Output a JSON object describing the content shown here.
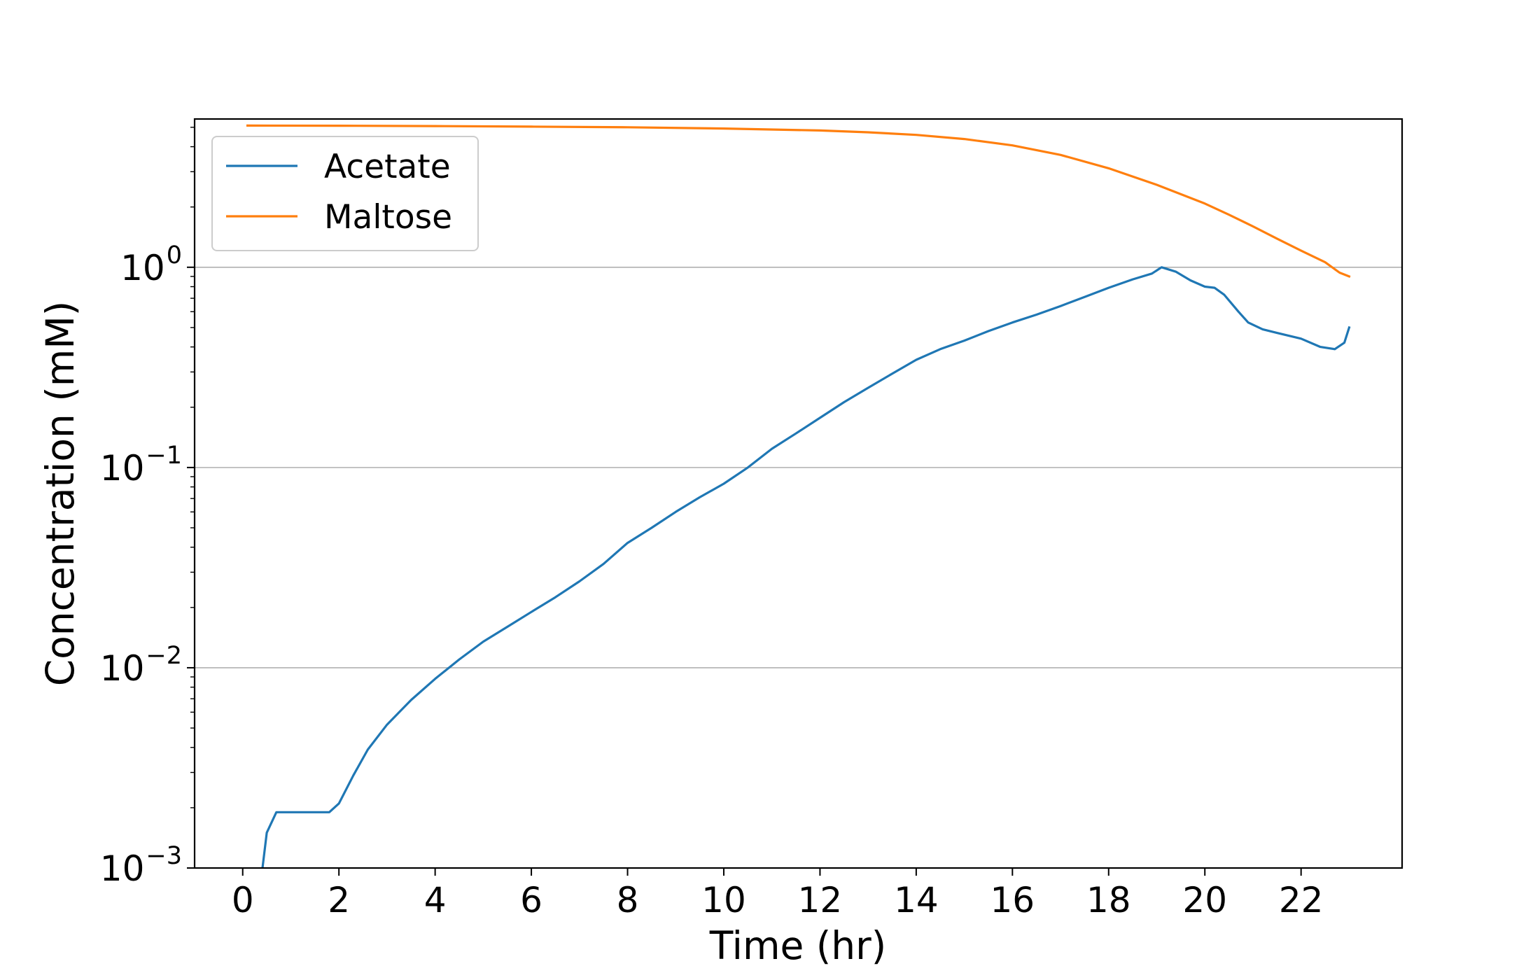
{
  "chart_data": {
    "type": "line",
    "xlabel": "Time (hr)",
    "ylabel": "Concentration (mM)",
    "y_scale": "log",
    "xlim": [
      -1,
      24.1
    ],
    "ylim": [
      0.001,
      5.5
    ],
    "x_ticks": [
      0,
      2,
      4,
      6,
      8,
      10,
      12,
      14,
      16,
      18,
      20,
      22
    ],
    "x_tick_labels": [
      "0",
      "2",
      "4",
      "6",
      "8",
      "10",
      "12",
      "14",
      "16",
      "18",
      "20",
      "22"
    ],
    "y_ticks": [
      {
        "value": 0.001,
        "base": "10",
        "exp": "−3"
      },
      {
        "value": 0.01,
        "base": "10",
        "exp": "−2"
      },
      {
        "value": 0.1,
        "base": "10",
        "exp": "−1"
      },
      {
        "value": 1,
        "base": "10",
        "exp": "0"
      }
    ],
    "grid": "horizontal",
    "legend_position": "upper-left",
    "series": [
      {
        "name": "Acetate",
        "color": "#1f77b4",
        "x": [
          0.4,
          0.5,
          0.7,
          1.0,
          1.5,
          1.8,
          2.0,
          2.3,
          2.6,
          3.0,
          3.5,
          4.0,
          4.5,
          5.0,
          5.5,
          6.0,
          6.5,
          7.0,
          7.5,
          8.0,
          8.5,
          9.0,
          9.5,
          10.0,
          10.5,
          11.0,
          11.5,
          12.0,
          12.5,
          13.0,
          13.5,
          14.0,
          14.5,
          15.0,
          15.5,
          16.0,
          16.5,
          17.0,
          17.5,
          18.0,
          18.5,
          18.9,
          19.1,
          19.4,
          19.7,
          20.0,
          20.2,
          20.4,
          20.7,
          20.9,
          21.2,
          21.5,
          22.0,
          22.4,
          22.7,
          22.9,
          23.0
        ],
        "y": [
          0.00095,
          0.0015,
          0.0019,
          0.0019,
          0.0019,
          0.0019,
          0.0021,
          0.0029,
          0.0039,
          0.0052,
          0.0069,
          0.0088,
          0.011,
          0.0135,
          0.016,
          0.019,
          0.0225,
          0.027,
          0.033,
          0.042,
          0.05,
          0.06,
          0.071,
          0.083,
          0.1,
          0.124,
          0.148,
          0.177,
          0.212,
          0.25,
          0.294,
          0.345,
          0.39,
          0.43,
          0.48,
          0.53,
          0.58,
          0.64,
          0.71,
          0.79,
          0.87,
          0.93,
          1.0,
          0.95,
          0.86,
          0.8,
          0.79,
          0.73,
          0.6,
          0.53,
          0.49,
          0.47,
          0.44,
          0.4,
          0.39,
          0.42,
          0.5
        ]
      },
      {
        "name": "Maltose",
        "color": "#ff7f0e",
        "x": [
          0.1,
          2,
          4,
          6,
          8,
          10,
          12,
          13,
          14,
          15,
          16,
          17,
          18,
          19,
          20,
          20.5,
          21,
          21.5,
          22,
          22.5,
          22.8,
          23.0
        ],
        "y": [
          5.1,
          5.09,
          5.07,
          5.04,
          5.0,
          4.93,
          4.82,
          4.72,
          4.58,
          4.37,
          4.06,
          3.64,
          3.12,
          2.58,
          2.08,
          1.83,
          1.6,
          1.39,
          1.21,
          1.06,
          0.94,
          0.9
        ]
      }
    ]
  }
}
